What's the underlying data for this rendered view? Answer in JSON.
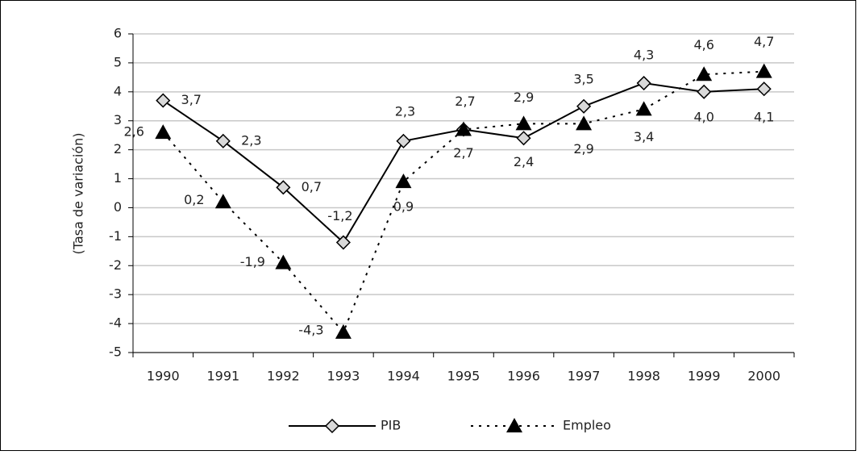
{
  "chart_data": {
    "type": "line",
    "y_label": "(Tasa de variación)",
    "categories": [
      "1990",
      "1991",
      "1992",
      "1993",
      "1994",
      "1995",
      "1996",
      "1997",
      "1998",
      "1999",
      "2000"
    ],
    "series": [
      {
        "name": "PIB",
        "color": "#000000",
        "marker": "diamond",
        "dash": "solid",
        "values": [
          3.7,
          2.3,
          0.7,
          -1.2,
          2.3,
          2.7,
          2.4,
          3.5,
          4.3,
          4.0,
          4.1
        ],
        "value_labels": [
          "3,7",
          "2,3",
          "0,7",
          "-1,2",
          "2,3",
          "2,7",
          "2,4",
          "3,5",
          "4,3",
          "4,0",
          "4,1"
        ]
      },
      {
        "name": "Empleo",
        "color": "#000000",
        "marker": "triangle",
        "dash": "dotted",
        "values": [
          2.6,
          0.2,
          -1.9,
          -4.3,
          0.9,
          2.7,
          2.9,
          2.9,
          3.4,
          4.6,
          4.7
        ],
        "value_labels": [
          "2,6",
          "0,2",
          "-1,9",
          "-4,3",
          "0,9",
          "2,7",
          "2,9",
          "2,9",
          "3,4",
          "4,6",
          "4,7"
        ]
      }
    ],
    "ylim": [
      -5,
      6
    ],
    "yticks": [
      -5,
      -4,
      -3,
      -2,
      -1,
      0,
      1,
      2,
      3,
      4,
      5,
      6
    ],
    "grid": true,
    "legend": "bottom"
  }
}
